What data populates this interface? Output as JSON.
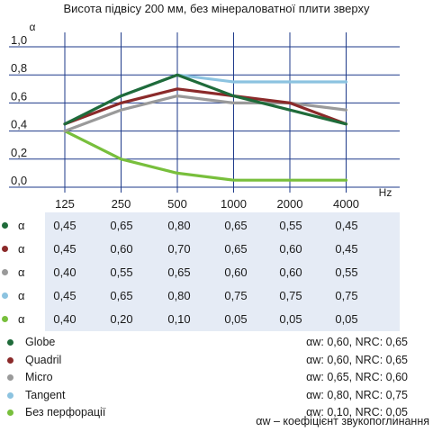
{
  "title": "Висота підвісу 200 мм, без мінераловатної плити зверху",
  "chart_data": {
    "type": "line",
    "title": "Висота підвісу 200 мм, без мінераловатної плити зверху",
    "ylabel": "α",
    "xlabel": "Hz",
    "categories": [
      "125",
      "250",
      "500",
      "1000",
      "2000",
      "4000"
    ],
    "yticks": [
      "1,0",
      "0,8",
      "0,6",
      "0,4",
      "0,2",
      "0,0"
    ],
    "ylim": [
      0,
      1.0
    ],
    "grid": true,
    "series": [
      {
        "name": "Globe",
        "color": "#1f6b3a",
        "values": [
          0.45,
          0.65,
          0.8,
          0.65,
          0.55,
          0.45
        ]
      },
      {
        "name": "Quadril",
        "color": "#8b2a2a",
        "values": [
          0.45,
          0.6,
          0.7,
          0.65,
          0.6,
          0.45
        ]
      },
      {
        "name": "Micro",
        "color": "#9a9a9a",
        "values": [
          0.4,
          0.55,
          0.65,
          0.6,
          0.6,
          0.55
        ]
      },
      {
        "name": "Tangent",
        "color": "#8cc3e0",
        "values": [
          0.45,
          0.65,
          0.8,
          0.75,
          0.75,
          0.75
        ]
      },
      {
        "name": "Без перфорації",
        "color": "#78bf3c",
        "values": [
          0.4,
          0.2,
          0.1,
          0.05,
          0.05,
          0.05
        ]
      }
    ]
  },
  "table": {
    "symbol": "α",
    "rows": [
      {
        "color": "#1f6b3a",
        "cells": [
          "0,45",
          "0,65",
          "0,80",
          "0,65",
          "0,55",
          "0,45"
        ]
      },
      {
        "color": "#8b2a2a",
        "cells": [
          "0,45",
          "0,60",
          "0,70",
          "0,65",
          "0,60",
          "0,45"
        ]
      },
      {
        "color": "#9a9a9a",
        "cells": [
          "0,40",
          "0,55",
          "0,65",
          "0,60",
          "0,60",
          "0,55"
        ]
      },
      {
        "color": "#8cc3e0",
        "cells": [
          "0,45",
          "0,65",
          "0,80",
          "0,75",
          "0,75",
          "0,75"
        ]
      },
      {
        "color": "#78bf3c",
        "cells": [
          "0,40",
          "0,20",
          "0,10",
          "0,05",
          "0,05",
          "0,05"
        ]
      }
    ]
  },
  "legend": [
    {
      "name": "Globe",
      "color": "#1f6b3a",
      "metrics": "αw: 0,60, NRC: 0,65"
    },
    {
      "name": "Quadril",
      "color": "#8b2a2a",
      "metrics": "αw: 0,60, NRC: 0,65"
    },
    {
      "name": "Micro",
      "color": "#9a9a9a",
      "metrics": "αw: 0,65, NRC: 0,60"
    },
    {
      "name": "Tangent",
      "color": "#8cc3e0",
      "metrics": "αw: 0,80, NRC: 0,75"
    },
    {
      "name": "Без перфорації",
      "color": "#78bf3c",
      "metrics": "αw: 0,10, NRC: 0,05"
    }
  ],
  "footnote": "αw – коефіцієнт звукопоглинання"
}
